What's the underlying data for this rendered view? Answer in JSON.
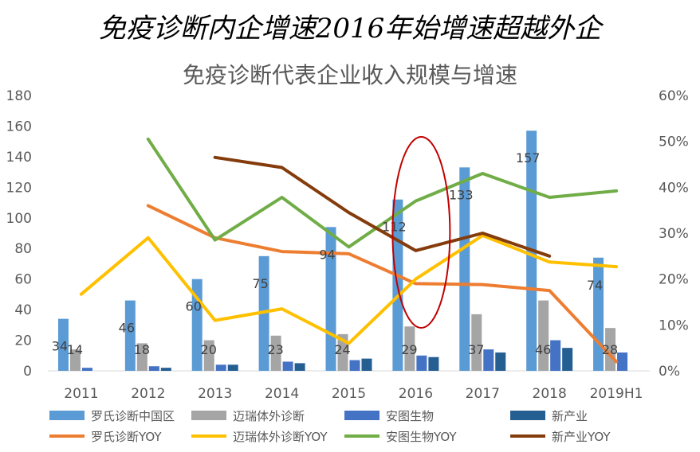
{
  "headline": "免疫诊断内企增速2016年始增速超越外企",
  "chart_data": {
    "type": "bar",
    "title": "免疫诊断代表企业收入规模与增速",
    "categories": [
      "2011",
      "2012",
      "2013",
      "2014",
      "2015",
      "2016",
      "2017",
      "2018",
      "2019H1"
    ],
    "ylim": [
      0,
      180
    ],
    "y2lim": [
      0,
      0.6
    ],
    "yticks": [
      "0",
      "20",
      "40",
      "60",
      "80",
      "100",
      "120",
      "140",
      "160",
      "180"
    ],
    "y2ticks": [
      "0%",
      "10%",
      "20%",
      "30%",
      "40%",
      "50%",
      "60%"
    ],
    "bar_series": [
      {
        "name": "罗氏诊断中国区",
        "color": "#5B9BD5",
        "values": [
          34,
          46,
          60,
          75,
          94,
          112,
          133,
          157,
          74
        ]
      },
      {
        "name": "迈瑞体外诊断",
        "color": "#A5A5A5",
        "values": [
          14,
          18,
          20,
          23,
          24,
          29,
          37,
          46,
          28
        ]
      },
      {
        "name": "安图生物",
        "color": "#4472C4",
        "values": [
          2,
          3,
          4,
          6,
          7,
          10,
          14,
          20,
          12
        ]
      },
      {
        "name": "新产业",
        "color": "#255E91",
        "values": [
          0,
          2,
          4,
          5,
          8,
          9,
          12,
          15,
          0
        ]
      }
    ],
    "bar_labels": {
      "series0": [
        "34",
        "46",
        "60",
        "75",
        "94",
        "112",
        "133",
        "157",
        "74"
      ],
      "series1": [
        "14",
        "18",
        "20",
        "23",
        "24",
        "29",
        "37",
        "46",
        "28"
      ]
    },
    "line_series": [
      {
        "name": "罗氏诊断YOY",
        "color": "#ED7D31",
        "values": [
          null,
          0.36,
          0.29,
          0.26,
          0.255,
          0.19,
          0.188,
          0.175,
          0.02
        ]
      },
      {
        "name": "迈瑞体外诊断YOY",
        "color": "#FFC000",
        "values": [
          0.167,
          0.29,
          0.11,
          0.135,
          0.06,
          0.2,
          0.295,
          0.237,
          0.227
        ]
      },
      {
        "name": "安图生物YOY",
        "color": "#70AD47",
        "values": [
          null,
          0.505,
          0.285,
          0.378,
          0.27,
          0.37,
          0.43,
          0.378,
          0.392
        ]
      },
      {
        "name": "新产业YOY",
        "color": "#843C0C",
        "values": [
          null,
          null,
          0.465,
          0.443,
          0.345,
          0.262,
          0.3,
          0.25,
          null
        ]
      }
    ],
    "highlight": {
      "category": "2016",
      "shape": "ellipse",
      "color": "#C00000"
    },
    "legend_position": "bottom",
    "grid": false
  }
}
